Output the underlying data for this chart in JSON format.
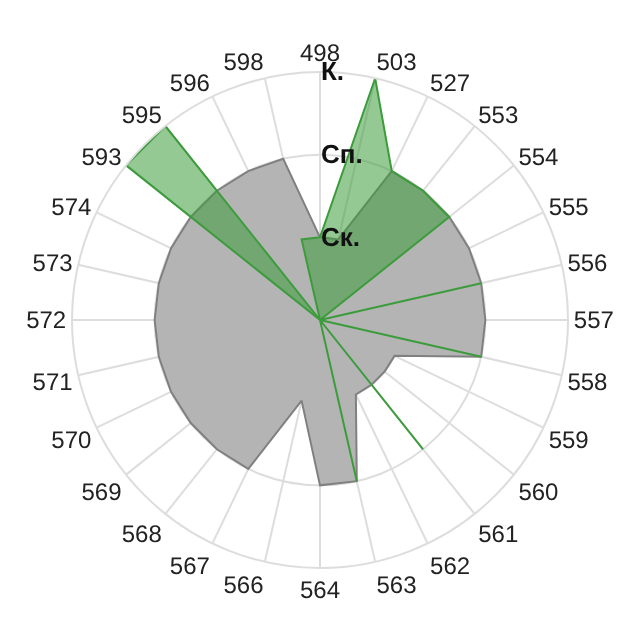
{
  "chart_data": {
    "type": "radar",
    "categories": [
      "498",
      "503",
      "527",
      "553",
      "554",
      "555",
      "556",
      "557",
      "558",
      "559",
      "560",
      "561",
      "562",
      "563",
      "564",
      "566",
      "567",
      "568",
      "569",
      "570",
      "571",
      "572",
      "573",
      "574",
      "593",
      "595",
      "596",
      "598"
    ],
    "series": [
      {
        "color": "#b4b4b4",
        "values": [
          1,
          1,
          2,
          2,
          2,
          2,
          2,
          2,
          2,
          1,
          1,
          1,
          1,
          2,
          2,
          1,
          2,
          2,
          2,
          2,
          2,
          2,
          2,
          2,
          2,
          2,
          2,
          2
        ]
      },
      {
        "color": "#3c9c3c",
        "values": [
          1,
          3,
          2,
          2,
          2,
          0,
          2,
          0,
          2,
          0,
          0,
          2,
          0,
          2,
          0,
          0,
          0,
          0,
          0,
          0,
          0,
          0,
          0,
          0,
          3,
          3,
          0,
          1
        ]
      }
    ],
    "ylim": [
      0,
      3
    ],
    "yticks": [
      {
        "value": 1,
        "label": "Ск."
      },
      {
        "value": 2,
        "label": "Сп."
      },
      {
        "value": 3,
        "label": "К."
      }
    ],
    "grid": true,
    "marker": "none"
  }
}
